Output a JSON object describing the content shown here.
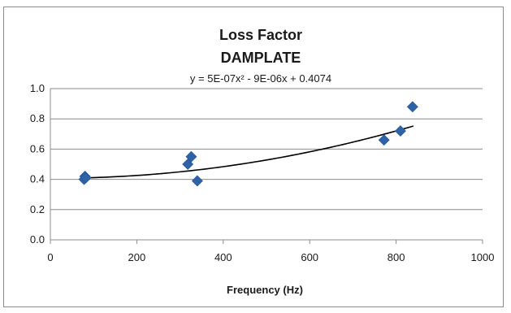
{
  "chart_data": {
    "type": "scatter",
    "title": "Loss Factor",
    "subtitle": "DAMPLATE",
    "annotation": "y = 5E-07x² - 9E-06x + 0.4074",
    "xlabel": "Frequency (Hz)",
    "ylabel": "",
    "xlim": [
      0,
      1000
    ],
    "ylim": [
      0,
      1.0
    ],
    "xticks": [
      "0",
      "200",
      "400",
      "600",
      "800",
      "1000"
    ],
    "yticks": [
      "0.0",
      "0.2",
      "0.4",
      "0.6",
      "0.8",
      "1.0"
    ],
    "xtick_values": [
      0,
      200,
      400,
      600,
      800,
      1000
    ],
    "ytick_values": [
      0,
      0.2,
      0.4,
      0.6,
      0.8,
      1.0
    ],
    "grid": "horizontal",
    "legend": "none",
    "series": [
      {
        "marker": "diamond",
        "color": "#2e64a7",
        "points": [
          {
            "x": 78,
            "y": 0.4
          },
          {
            "x": 80,
            "y": 0.42
          },
          {
            "x": 82,
            "y": 0.41
          },
          {
            "x": 318,
            "y": 0.5
          },
          {
            "x": 326,
            "y": 0.55
          },
          {
            "x": 340,
            "y": 0.39
          },
          {
            "x": 772,
            "y": 0.66
          },
          {
            "x": 810,
            "y": 0.72
          },
          {
            "x": 838,
            "y": 0.88
          }
        ]
      }
    ],
    "trendline": {
      "type": "polynomial",
      "coefficients": [
        5e-07,
        -9e-06,
        0.4074
      ],
      "x_range": [
        75,
        840
      ],
      "color": "#000000"
    }
  }
}
